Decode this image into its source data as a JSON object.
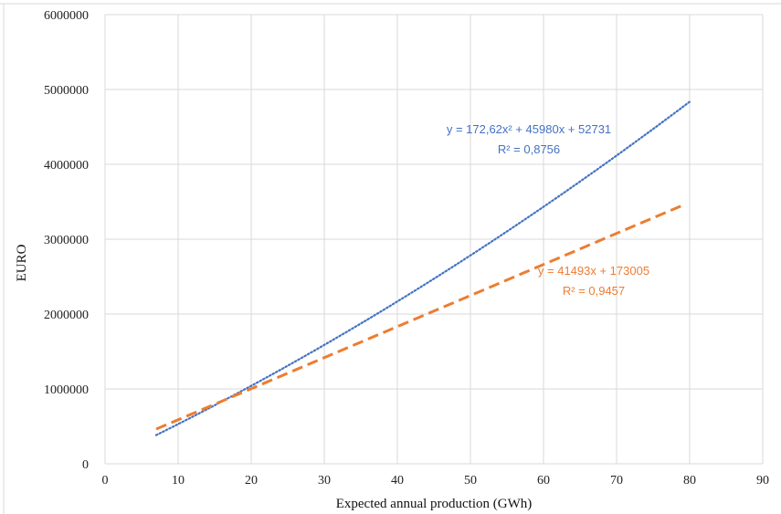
{
  "chart_data": {
    "type": "line",
    "title": "",
    "xlabel": "Expected  annual production (GWh)",
    "ylabel": "EURO",
    "xlim": [
      0,
      90
    ],
    "ylim": [
      0,
      6000000
    ],
    "x_ticks": [
      "0",
      "10",
      "20",
      "30",
      "40",
      "50",
      "60",
      "70",
      "80",
      "90"
    ],
    "y_ticks": [
      "0",
      "1000000",
      "2000000",
      "3000000",
      "4000000",
      "5000000",
      "6000000"
    ],
    "grid": true,
    "legend": "none",
    "series": [
      {
        "style": "dotted",
        "color": "#4472C4",
        "trendline": "polynomial",
        "coefficients": {
          "a": 172.62,
          "b": 45980,
          "c": 52731
        },
        "x_range": [
          7,
          80
        ],
        "equation_label": "y = 172,62x² + 45980x + 52731",
        "r2_label": "R² = 0,8756"
      },
      {
        "style": "dashed",
        "color": "#ED7D31",
        "trendline": "linear",
        "coefficients": {
          "a": 0,
          "b": 41493,
          "c": 173005
        },
        "x_range": [
          7,
          79
        ],
        "equation_label": "y = 41493x + 173005",
        "r2_label": "R² = 0,9457"
      }
    ]
  }
}
